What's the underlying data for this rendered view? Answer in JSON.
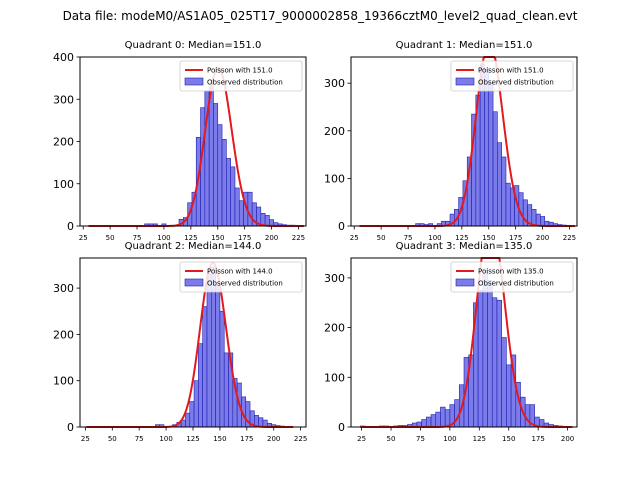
{
  "suptitle": "Data file: modeM0/AS1A05_025T17_9000002858_19366cztM0_level2_quad_clean.evt",
  "colors": {
    "bar_fill": "#7b7bea",
    "bar_edge": "#1f1fb0",
    "fit_line": "#e31a1c",
    "axis": "#000000"
  },
  "legend": {
    "fit_prefix": "Poisson with",
    "observed_label": "Observed distribution",
    "position": "upper right"
  },
  "chart_data": [
    {
      "type": "bar",
      "title": "Quadrant 0: Median=151.0",
      "median": 151.0,
      "bin_width": 4,
      "x_start": 30,
      "xlim": [
        22,
        232
      ],
      "ylim": [
        0,
        400
      ],
      "xticks": [
        25,
        50,
        75,
        100,
        125,
        150,
        175,
        200,
        225
      ],
      "yticks": [
        0,
        100,
        200,
        300,
        400
      ],
      "counts": [
        1,
        1,
        1,
        1,
        1,
        1,
        1,
        1,
        1,
        1,
        1,
        1,
        1,
        5,
        5,
        5,
        1,
        5,
        1,
        1,
        1,
        16,
        20,
        55,
        80,
        210,
        280,
        320,
        330,
        290,
        240,
        205,
        160,
        140,
        90,
        60,
        80,
        80,
        55,
        45,
        30,
        25,
        15,
        8,
        5,
        3,
        2,
        2,
        1,
        1
      ]
    },
    {
      "type": "bar",
      "title": "Quadrant 1: Median=151.0",
      "median": 151.0,
      "bin_width": 4,
      "x_start": 30,
      "xlim": [
        22,
        232
      ],
      "ylim": [
        0,
        355
      ],
      "xticks": [
        25,
        50,
        75,
        100,
        125,
        150,
        175,
        200,
        225
      ],
      "yticks": [
        0,
        100,
        200,
        300
      ],
      "counts": [
        1,
        1,
        1,
        1,
        1,
        1,
        1,
        1,
        1,
        1,
        1,
        1,
        1,
        5,
        5,
        3,
        5,
        1,
        5,
        10,
        10,
        25,
        35,
        60,
        95,
        145,
        235,
        275,
        340,
        330,
        300,
        240,
        175,
        145,
        90,
        80,
        85,
        70,
        55,
        45,
        35,
        25,
        20,
        10,
        8,
        5,
        3,
        2,
        1,
        1
      ]
    },
    {
      "type": "bar",
      "title": "Quadrant 2: Median=144.0",
      "median": 144.0,
      "bin_width": 4,
      "x_start": 26,
      "xlim": [
        20,
        230
      ],
      "ylim": [
        0,
        365
      ],
      "xticks": [
        25,
        50,
        75,
        100,
        125,
        150,
        175,
        200,
        225
      ],
      "yticks": [
        0,
        100,
        200,
        300
      ],
      "counts": [
        1,
        1,
        1,
        1,
        1,
        1,
        1,
        1,
        1,
        1,
        1,
        1,
        1,
        1,
        1,
        1,
        5,
        5,
        1,
        1,
        5,
        10,
        15,
        30,
        55,
        100,
        180,
        260,
        330,
        345,
        305,
        250,
        160,
        160,
        105,
        95,
        65,
        55,
        35,
        25,
        20,
        15,
        8,
        5,
        3,
        2,
        1,
        1
      ]
    },
    {
      "type": "bar",
      "title": "Quadrant 3: Median=135.0",
      "median": 135.0,
      "bin_width": 4,
      "x_start": 24,
      "xlim": [
        16,
        208
      ],
      "ylim": [
        0,
        340
      ],
      "xticks": [
        25,
        50,
        75,
        100,
        125,
        150,
        175,
        200
      ],
      "yticks": [
        0,
        100,
        200,
        300
      ],
      "counts": [
        2,
        1,
        1,
        1,
        2,
        2,
        1,
        2,
        3,
        3,
        5,
        8,
        10,
        15,
        20,
        25,
        30,
        40,
        35,
        45,
        55,
        85,
        140,
        145,
        250,
        275,
        315,
        295,
        260,
        255,
        180,
        125,
        145,
        90,
        60,
        45,
        45,
        20,
        15,
        8,
        5,
        3,
        2,
        1,
        1
      ]
    }
  ]
}
